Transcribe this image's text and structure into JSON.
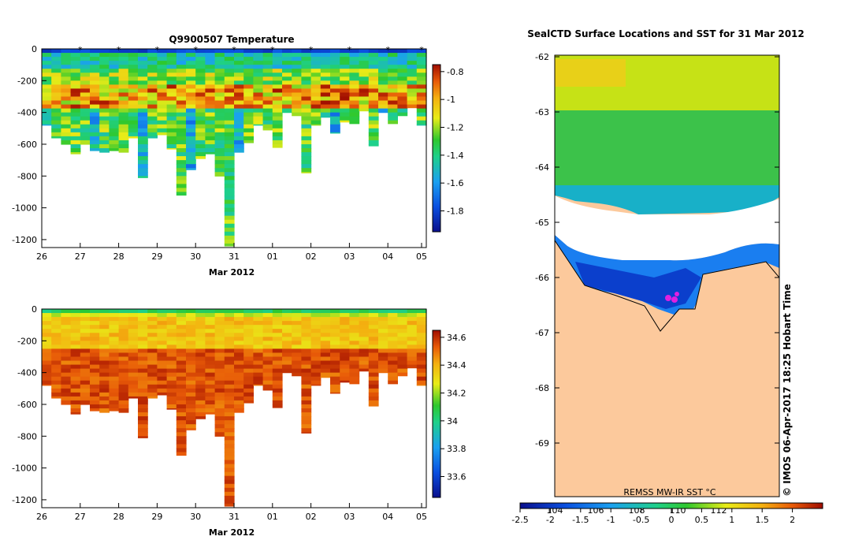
{
  "chart_data": [
    {
      "type": "heatmap",
      "title": "Q9900507  Temperature",
      "xlabel": "Mar 2012",
      "ylabel": "",
      "x_ticks": [
        "26",
        "27",
        "28",
        "29",
        "30",
        "31",
        "01",
        "02",
        "03",
        "04",
        "05"
      ],
      "y_ticks": [
        "0",
        "-200",
        "-400",
        "-600",
        "-800",
        "-1000",
        "-1200"
      ],
      "ylim": [
        -1250,
        0
      ],
      "colorbar_ticks": [
        "-0.8",
        "-1",
        "-1.2",
        "-1.4",
        "-1.6",
        "-1.8"
      ],
      "colorbar_range": [
        -1.95,
        -0.75
      ],
      "profile_max_depths": [
        480,
        560,
        600,
        660,
        600,
        640,
        650,
        640,
        650,
        560,
        810,
        560,
        540,
        630,
        920,
        760,
        690,
        660,
        800,
        1240,
        650,
        590,
        480,
        510,
        620,
        400,
        420,
        780,
        480,
        430,
        530,
        460,
        470,
        390,
        610,
        400,
        470,
        420,
        370,
        480
      ]
    },
    {
      "type": "heatmap",
      "title": "",
      "xlabel": "Mar 2012",
      "ylabel": "",
      "x_ticks": [
        "26",
        "27",
        "28",
        "29",
        "30",
        "31",
        "01",
        "02",
        "03",
        "04",
        "05"
      ],
      "y_ticks": [
        "0",
        "-200",
        "-400",
        "-600",
        "-800",
        "-1000",
        "-1200"
      ],
      "ylim": [
        -1250,
        0
      ],
      "colorbar_ticks": [
        "34.6",
        "34.4",
        "34.2",
        "34",
        "33.8",
        "33.6"
      ],
      "colorbar_range": [
        33.45,
        34.65
      ]
    },
    {
      "type": "heatmap",
      "title": "SealCTD Surface Locations and SST for 31 Mar 2012",
      "xlabel": "",
      "ylabel": "",
      "y_ticks": [
        "-62",
        "-63",
        "-64",
        "-65",
        "-66",
        "-67",
        "-68",
        "-69"
      ],
      "x_ticks_inner": [
        "104",
        "106",
        "108",
        "110",
        "112"
      ],
      "colorbar_ticks": [
        "-2.5",
        "-2",
        "-1.5",
        "-1",
        "-0.5",
        "0",
        "0.5",
        "1",
        "1.5",
        "2"
      ],
      "colorbar_range": [
        -2.5,
        2.5
      ],
      "source_label": "REMSS MW-IR SST °C",
      "credit": "© IMOS 06-Apr-2017 18:25 Hobart Time"
    }
  ]
}
